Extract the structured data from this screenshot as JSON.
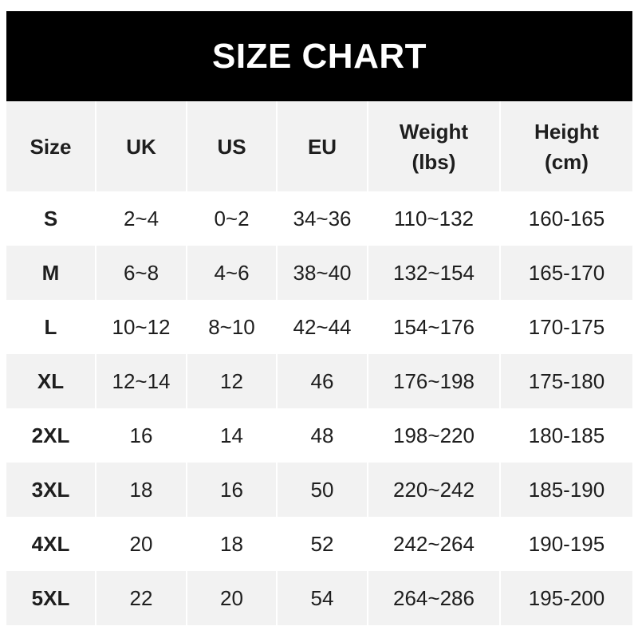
{
  "title": "SIZE CHART",
  "headers": [
    {
      "line1": "Size",
      "line2": ""
    },
    {
      "line1": "UK",
      "line2": ""
    },
    {
      "line1": "US",
      "line2": ""
    },
    {
      "line1": "EU",
      "line2": ""
    },
    {
      "line1": "Weight",
      "line2": "(lbs)"
    },
    {
      "line1": "Height",
      "line2": "(cm)"
    }
  ],
  "rows": [
    [
      "S",
      "2~4",
      "0~2",
      "34~36",
      "110~132",
      "160-165"
    ],
    [
      "M",
      "6~8",
      "4~6",
      "38~40",
      "132~154",
      "165-170"
    ],
    [
      "L",
      "10~12",
      "8~10",
      "42~44",
      "154~176",
      "170-175"
    ],
    [
      "XL",
      "12~14",
      "12",
      "46",
      "176~198",
      "175-180"
    ],
    [
      "2XL",
      "16",
      "14",
      "48",
      "198~220",
      "180-185"
    ],
    [
      "3XL",
      "18",
      "16",
      "50",
      "220~242",
      "185-190"
    ],
    [
      "4XL",
      "20",
      "18",
      "52",
      "242~264",
      "190-195"
    ],
    [
      "5XL",
      "22",
      "20",
      "54",
      "264~286",
      "195-200"
    ]
  ],
  "colors": {
    "banner": "#000000",
    "stripe": "#f2f2f2",
    "text": "#1e1e1e"
  }
}
